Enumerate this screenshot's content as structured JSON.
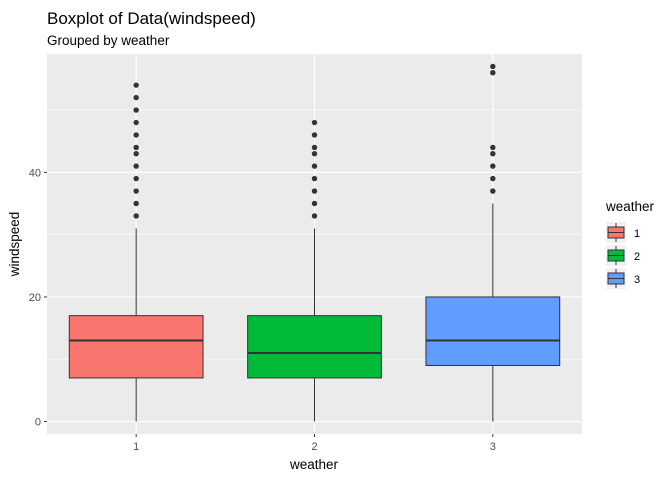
{
  "chart_data": {
    "type": "boxplot",
    "title": "Boxplot of Data(windspeed)",
    "subtitle": "Grouped by weather",
    "xlabel": "weather",
    "ylabel": "windspeed",
    "ylim": [
      -2,
      59
    ],
    "yticks": [
      0,
      20,
      40
    ],
    "grid": true,
    "legend": {
      "title": "weather",
      "position": "right"
    },
    "categories": [
      "1",
      "2",
      "3"
    ],
    "boxes": [
      {
        "name": "1",
        "color": "#F8766D",
        "whisker_low": 0,
        "q1": 7,
        "median": 13,
        "q3": 17,
        "whisker_high": 31,
        "outliers": [
          33,
          35,
          37,
          39,
          41,
          43,
          44,
          46,
          48,
          50,
          52,
          54
        ]
      },
      {
        "name": "2",
        "color": "#00BA38",
        "whisker_low": 0,
        "q1": 7,
        "median": 11,
        "q3": 17,
        "whisker_high": 31,
        "outliers": [
          33,
          35,
          37,
          39,
          41,
          43,
          44,
          46,
          48
        ]
      },
      {
        "name": "3",
        "color": "#619CFF",
        "whisker_low": 0,
        "q1": 9,
        "median": 13,
        "q3": 20,
        "whisker_high": 35,
        "outliers": [
          37,
          39,
          41,
          43,
          44,
          56,
          57
        ]
      }
    ]
  }
}
